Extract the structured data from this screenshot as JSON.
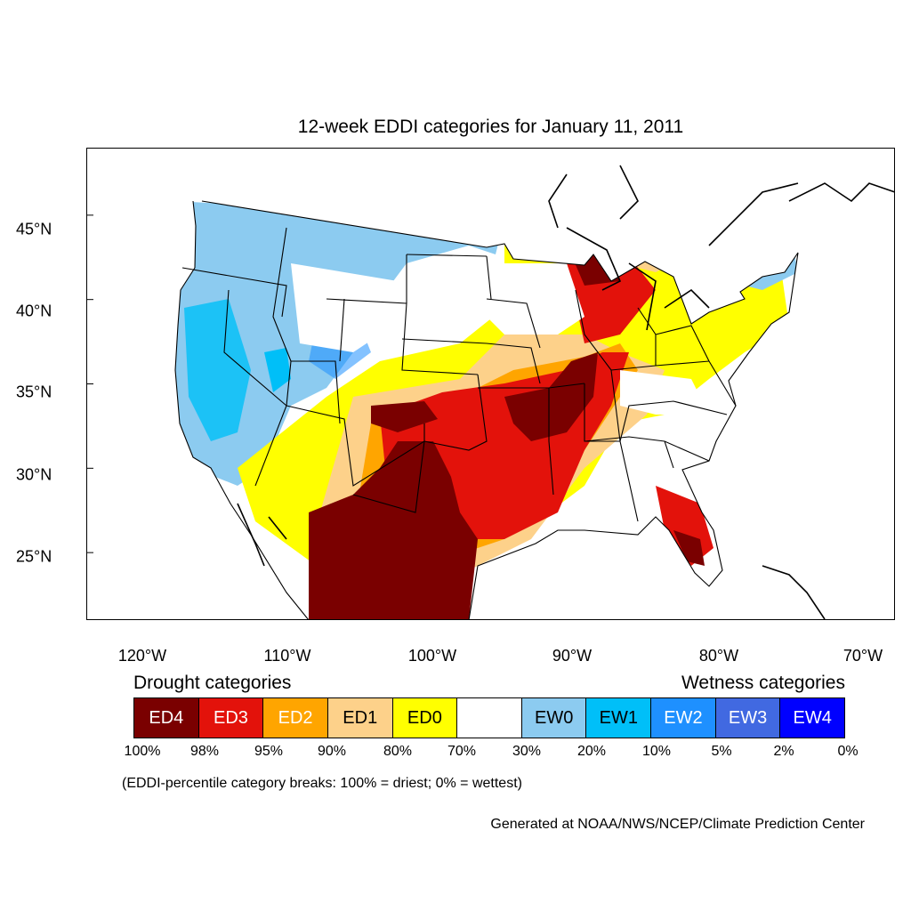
{
  "map": {
    "title": "12-week EDDI categories for January 11, 2011",
    "lon_labels": [
      "120°W",
      "110°W",
      "100°W",
      "90°W",
      "80°W",
      "70°W"
    ],
    "lat_labels": [
      "45°N",
      "40°N",
      "35°N",
      "30°N",
      "25°N"
    ],
    "lon_values": [
      -120,
      -110,
      -100,
      -90,
      -80,
      -70
    ],
    "lat_values": [
      45,
      40,
      35,
      30,
      25
    ],
    "extent": {
      "lon_min": -121.9,
      "lon_max": -68.1,
      "lat_min": 21.0,
      "lat_max": 49.0
    }
  },
  "legend": {
    "drought_heading": "Drought categories",
    "wetness_heading": "Wetness categories",
    "categories": [
      {
        "label": "ED4",
        "color": "#7a0000",
        "text_color": "#ffffff"
      },
      {
        "label": "ED3",
        "color": "#e3120b",
        "text_color": "#ffffff"
      },
      {
        "label": "ED2",
        "color": "#ffa500",
        "text_color": "#ffffff"
      },
      {
        "label": "ED1",
        "color": "#fdd18a",
        "text_color": "#000000"
      },
      {
        "label": "ED0",
        "color": "#ffff00",
        "text_color": "#000000"
      },
      {
        "label": "",
        "color": "#ffffff",
        "text_color": "#000000"
      },
      {
        "label": "EW0",
        "color": "#8ccbf0",
        "text_color": "#000000"
      },
      {
        "label": "EW1",
        "color": "#00bff8",
        "text_color": "#000000"
      },
      {
        "label": "EW2",
        "color": "#1e90ff",
        "text_color": "#ffffff"
      },
      {
        "label": "EW3",
        "color": "#4169e1",
        "text_color": "#ffffff"
      },
      {
        "label": "EW4",
        "color": "#0000ff",
        "text_color": "#ffffff"
      }
    ],
    "breaks": [
      "100%",
      "98%",
      "95%",
      "90%",
      "80%",
      "70%",
      "30%",
      "20%",
      "10%",
      "5%",
      "2%",
      "0%"
    ]
  },
  "note": "(EDDI-percentile category breaks: 100% = driest; 0% = wettest)",
  "credit": "Generated at NOAA/NWS/NCEP/Climate Prediction Center"
}
